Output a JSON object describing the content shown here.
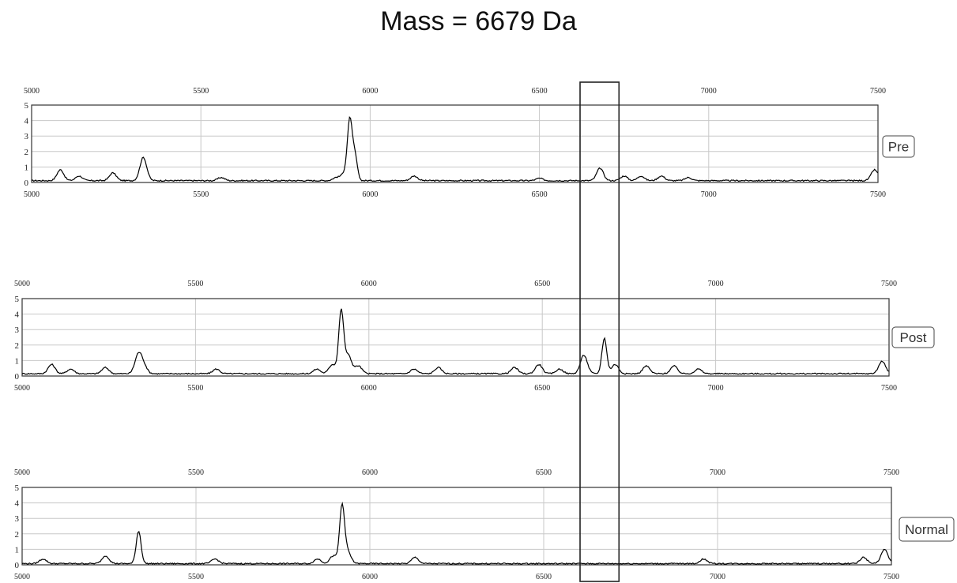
{
  "title": "Mass = 6679 Da",
  "chart_data": [
    {
      "type": "line",
      "legend_label": "Pre",
      "x_range": [
        5000,
        7500
      ],
      "top_ticks": [
        "5000",
        "5500",
        "6000",
        "6500",
        "7000",
        "7500"
      ],
      "bottom_ticks": [
        "5000",
        "5500",
        "6000",
        "6500",
        "7000",
        "7500"
      ],
      "y_ticks": [
        "0",
        "1",
        "2",
        "3",
        "4",
        "5"
      ],
      "ylim": [
        0,
        5
      ],
      "grid": true,
      "legend_placement": "right",
      "series": [
        {
          "color": "#000000",
          "baseline": 0.12,
          "peaks": [
            {
              "x": 5085,
              "h": 0.7
            },
            {
              "x": 5140,
              "h": 0.3
            },
            {
              "x": 5240,
              "h": 0.5
            },
            {
              "x": 5330,
              "h": 1.5
            },
            {
              "x": 5560,
              "h": 0.2
            },
            {
              "x": 5900,
              "h": 0.2
            },
            {
              "x": 5925,
              "h": 0.5
            },
            {
              "x": 5940,
              "h": 3.8
            },
            {
              "x": 5955,
              "h": 1.6
            },
            {
              "x": 6130,
              "h": 0.3
            },
            {
              "x": 6500,
              "h": 0.15
            },
            {
              "x": 6679,
              "h": 0.8
            },
            {
              "x": 6750,
              "h": 0.3
            },
            {
              "x": 6800,
              "h": 0.3
            },
            {
              "x": 6860,
              "h": 0.3
            },
            {
              "x": 6940,
              "h": 0.2
            },
            {
              "x": 7490,
              "h": 0.7
            }
          ]
        }
      ]
    },
    {
      "type": "line",
      "legend_label": "Post",
      "x_range": [
        5000,
        7500
      ],
      "top_ticks": [
        "5000",
        "5500",
        "6000",
        "6500",
        "7000",
        "7500"
      ],
      "bottom_ticks": [
        "5000",
        "5500",
        "6000",
        "6500",
        "7000",
        "7500"
      ],
      "y_ticks": [
        "0",
        "1",
        "2",
        "3",
        "4",
        "5"
      ],
      "ylim": [
        0,
        5
      ],
      "grid": true,
      "legend_placement": "right",
      "series": [
        {
          "color": "#000000",
          "baseline": 0.15,
          "peaks": [
            {
              "x": 5085,
              "h": 0.6
            },
            {
              "x": 5140,
              "h": 0.3
            },
            {
              "x": 5240,
              "h": 0.4
            },
            {
              "x": 5335,
              "h": 1.2
            },
            {
              "x": 5350,
              "h": 0.5
            },
            {
              "x": 5560,
              "h": 0.3
            },
            {
              "x": 5850,
              "h": 0.3
            },
            {
              "x": 5895,
              "h": 0.6
            },
            {
              "x": 5920,
              "h": 4.0
            },
            {
              "x": 5940,
              "h": 1.2
            },
            {
              "x": 5970,
              "h": 0.5
            },
            {
              "x": 6130,
              "h": 0.3
            },
            {
              "x": 6200,
              "h": 0.4
            },
            {
              "x": 6420,
              "h": 0.4
            },
            {
              "x": 6490,
              "h": 0.6
            },
            {
              "x": 6550,
              "h": 0.3
            },
            {
              "x": 6620,
              "h": 1.2
            },
            {
              "x": 6679,
              "h": 2.3
            },
            {
              "x": 6710,
              "h": 0.6
            },
            {
              "x": 6800,
              "h": 0.5
            },
            {
              "x": 6880,
              "h": 0.5
            },
            {
              "x": 6950,
              "h": 0.3
            },
            {
              "x": 7480,
              "h": 0.8
            }
          ]
        }
      ]
    },
    {
      "type": "line",
      "legend_label": "Normal",
      "x_range": [
        5000,
        7500
      ],
      "top_ticks": [
        "5000",
        "5500",
        "6000",
        "6500",
        "7000",
        "7500"
      ],
      "bottom_ticks": [
        "5000",
        "5500",
        "6000",
        "6500",
        "7000",
        "7500"
      ],
      "y_ticks": [
        "0",
        "1",
        "2",
        "3",
        "4",
        "5"
      ],
      "ylim": [
        0,
        5
      ],
      "grid": true,
      "legend_placement": "right",
      "series": [
        {
          "color": "#000000",
          "baseline": 0.08,
          "peaks": [
            {
              "x": 5060,
              "h": 0.3
            },
            {
              "x": 5240,
              "h": 0.5
            },
            {
              "x": 5335,
              "h": 2.1
            },
            {
              "x": 5555,
              "h": 0.3
            },
            {
              "x": 5850,
              "h": 0.3
            },
            {
              "x": 5895,
              "h": 0.5
            },
            {
              "x": 5920,
              "h": 3.6
            },
            {
              "x": 5935,
              "h": 0.8
            },
            {
              "x": 6130,
              "h": 0.4
            },
            {
              "x": 6960,
              "h": 0.3
            },
            {
              "x": 7420,
              "h": 0.4
            },
            {
              "x": 7480,
              "h": 0.9
            }
          ]
        }
      ]
    }
  ],
  "highlight": {
    "x_from": 6620,
    "x_to": 6735
  }
}
